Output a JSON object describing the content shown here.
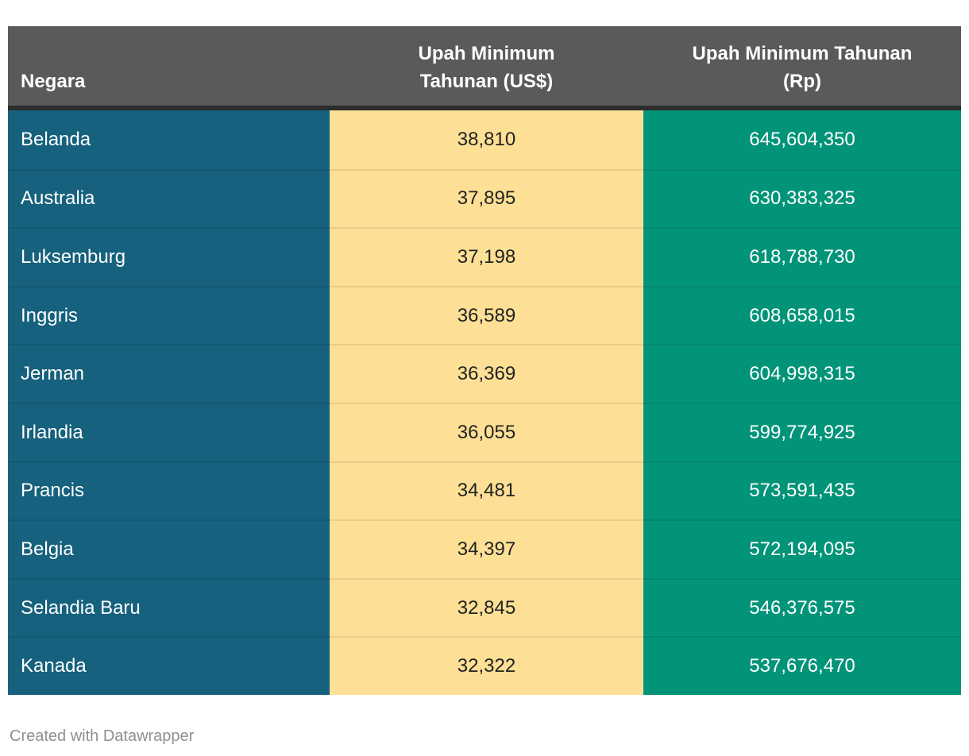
{
  "chart_data": {
    "type": "table",
    "title": "",
    "columns": [
      "Negara",
      "Upah Minimum Tahunan (US$)",
      "Upah Minimum Tahunan (Rp)"
    ],
    "categories": [
      "Belanda",
      "Australia",
      "Luksemburg",
      "Inggris",
      "Jerman",
      "Irlandia",
      "Prancis",
      "Belgia",
      "Selandia Baru",
      "Kanada"
    ],
    "series": [
      {
        "name": "Upah Minimum Tahunan (US$)",
        "values": [
          38810,
          37895,
          37198,
          36589,
          36369,
          36055,
          34481,
          34397,
          32845,
          32322
        ]
      },
      {
        "name": "Upah Minimum Tahunan (Rp)",
        "values": [
          645604350,
          630383325,
          618788730,
          608658015,
          604998315,
          599774925,
          573591435,
          572194095,
          546376575,
          537676470
        ]
      }
    ]
  },
  "table": {
    "columns": [
      {
        "label": "Negara",
        "align": "left"
      },
      {
        "label": "Upah Minimum\nTahunan (US$)",
        "align": "center"
      },
      {
        "label": "Upah Minimum Tahunan\n(Rp)",
        "align": "center"
      }
    ],
    "rows": [
      {
        "negara": "Belanda",
        "usd": "38,810",
        "rp": "645,604,350"
      },
      {
        "negara": "Australia",
        "usd": "37,895",
        "rp": "630,383,325"
      },
      {
        "negara": "Luksemburg",
        "usd": "37,198",
        "rp": "618,788,730"
      },
      {
        "negara": "Inggris",
        "usd": "36,589",
        "rp": "608,658,015"
      },
      {
        "negara": "Jerman",
        "usd": "36,369",
        "rp": "604,998,315"
      },
      {
        "negara": "Irlandia",
        "usd": "36,055",
        "rp": "599,774,925"
      },
      {
        "negara": "Prancis",
        "usd": "34,481",
        "rp": "573,591,435"
      },
      {
        "negara": "Belgia",
        "usd": "34,397",
        "rp": "572,194,095"
      },
      {
        "negara": "Selandia Baru",
        "usd": "32,845",
        "rp": "546,376,575"
      },
      {
        "negara": "Kanada",
        "usd": "32,322",
        "rp": "537,676,470"
      }
    ]
  },
  "footer": {
    "attribution": "Created with Datawrapper"
  },
  "colors": {
    "header_bg": "#5a5a5a",
    "header_border": "#2d2d2d",
    "col_negara_bg": "#16617d",
    "col_usd_bg": "#fde095",
    "col_rp_bg": "#029478",
    "text_light": "#ffffff",
    "text_dark": "#222222",
    "row_divider": "rgba(0,0,0,0.08)",
    "attribution_text": "#8f8f8f"
  }
}
